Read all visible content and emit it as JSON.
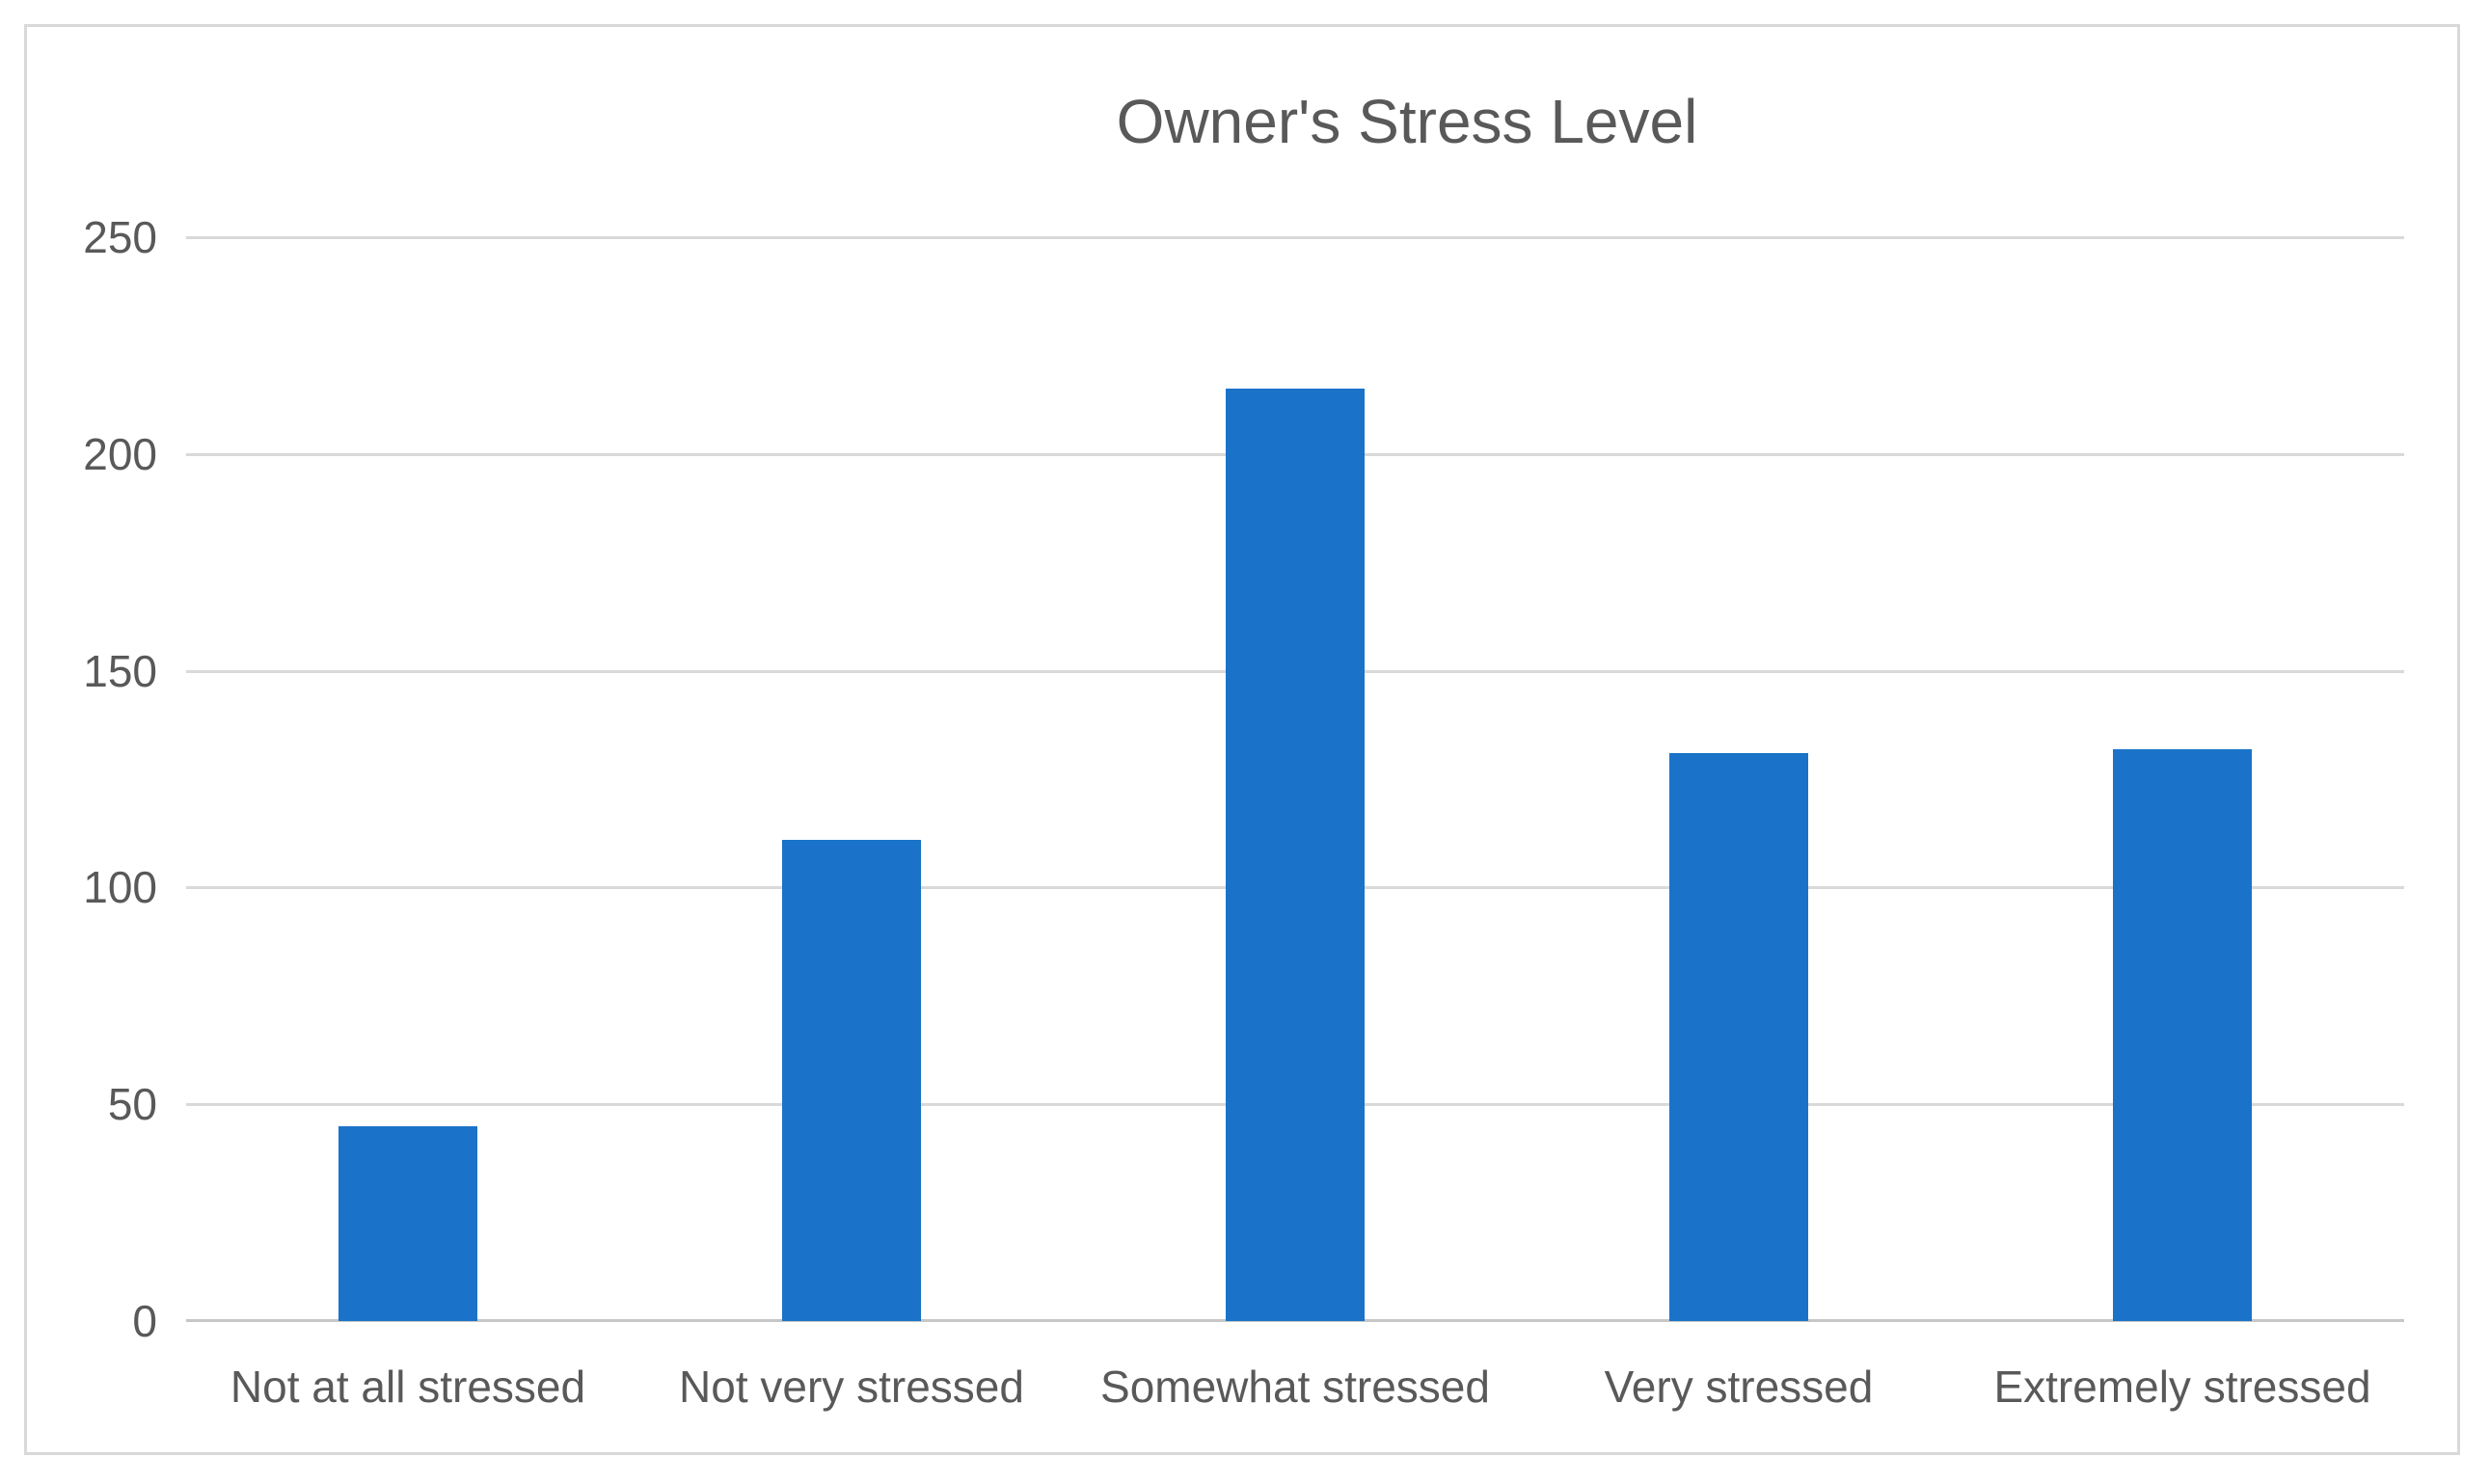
{
  "chart": {
    "colors": {
      "bar": "#1A73C8",
      "gridline": "#D9D9D9",
      "axis_line": "#C6C6C6",
      "text": "#595959",
      "frame_border": "#D9D9D9",
      "background": "#FFFFFF"
    }
  },
  "chart_data": {
    "type": "bar",
    "title": "Owner's Stress Level",
    "categories": [
      "Not at all stressed",
      "Not very stressed",
      "Somewhat stressed",
      "Very stressed",
      "Extremely stressed"
    ],
    "values": [
      45,
      111,
      215,
      131,
      132
    ],
    "xlabel": "",
    "ylabel": "",
    "ylim": [
      0,
      250
    ],
    "yticks": [
      0,
      50,
      100,
      150,
      200,
      250
    ],
    "grid": true,
    "legend": false,
    "orientation": "vertical"
  }
}
